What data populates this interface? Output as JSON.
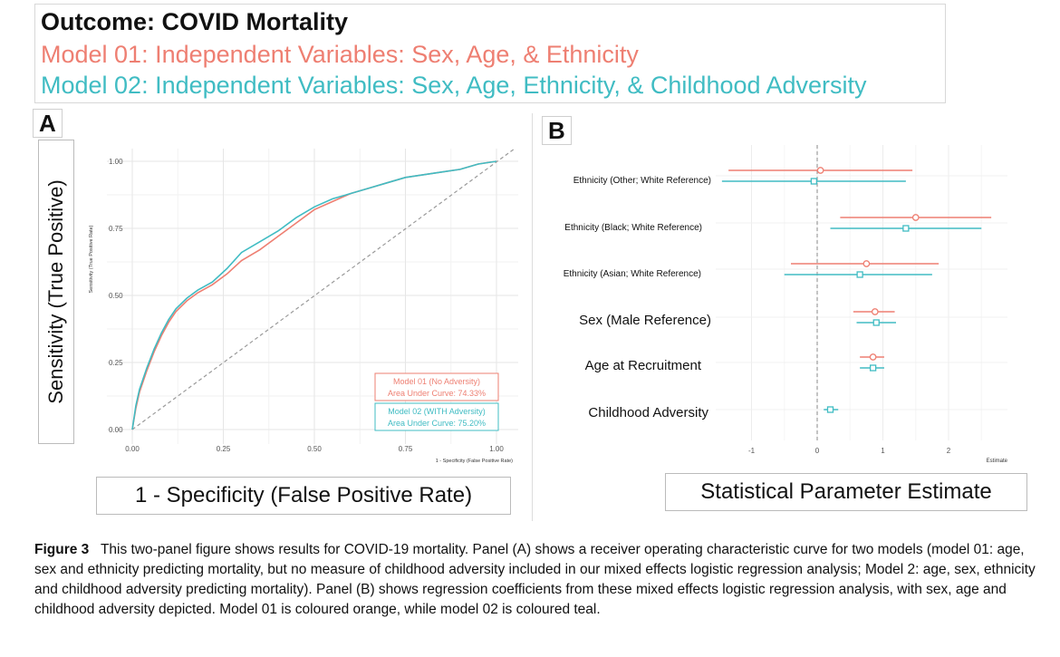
{
  "header": {
    "title": "Outcome: COVID Mortality",
    "model1": "Model 01: Independent Variables: Sex, Age, & Ethnicity",
    "model2": "Model 02: Independent Variables: Sex, Age, Ethnicity, & Childhood Adversity"
  },
  "colors": {
    "model1": "#ee7f72",
    "model2": "#40bcc3",
    "diagonal": "#9a9a9a"
  },
  "panelA": {
    "letter": "A",
    "big_ylabel": "Sensitivity (True Positive)",
    "big_xlabel": "1 - Specificity (False Positive Rate)"
  },
  "panelB": {
    "letter": "B",
    "big_xlabel": "Statistical Parameter Estimate"
  },
  "caption": {
    "label": "Figure 3",
    "text": "This two-panel figure shows results for COVID-19 mortality. Panel (A) shows a receiver operating characteristic curve for two models (model 01: age, sex and ethnicity predicting mortality, but no measure of childhood adversity included in our mixed effects logistic regression analysis; Model 2: age, sex, ethnicity and childhood adversity predicting mortality). Panel (B) shows regression coefficients from these mixed effects logistic regression analysis, with sex, age and childhood adversity depicted. Model 01 is coloured orange, while model 02 is coloured teal."
  },
  "chart_data": [
    {
      "type": "line",
      "title": "",
      "xlabel": "1 - Specificity (False Positive Rate)",
      "ylabel": "Sensitivity (True Positive Rate)",
      "xlim": [
        0,
        1
      ],
      "ylim": [
        0,
        1
      ],
      "xticks": [
        "0.00",
        "0.25",
        "0.50",
        "0.75",
        "1.00"
      ],
      "yticks": [
        "0.00",
        "0.25",
        "0.50",
        "0.75",
        "1.00"
      ],
      "grid": true,
      "legend_position": "bottom-right",
      "legend": [
        {
          "line1": "Model 01 (No Adversity)",
          "line2": "Area Under Curve: 74.33%"
        },
        {
          "line1": "Model 02 (WITH Adversity)",
          "line2": "Area Under Curve: 75.20%"
        }
      ],
      "series": [
        {
          "name": "Model 01 (No Adversity)",
          "x": [
            0,
            0.01,
            0.02,
            0.04,
            0.06,
            0.08,
            0.1,
            0.12,
            0.15,
            0.18,
            0.22,
            0.26,
            0.3,
            0.35,
            0.4,
            0.45,
            0.5,
            0.55,
            0.6,
            0.65,
            0.7,
            0.75,
            0.8,
            0.85,
            0.9,
            0.95,
            1.0
          ],
          "y": [
            0,
            0.08,
            0.14,
            0.22,
            0.29,
            0.35,
            0.4,
            0.44,
            0.48,
            0.51,
            0.54,
            0.58,
            0.63,
            0.67,
            0.72,
            0.77,
            0.82,
            0.85,
            0.88,
            0.9,
            0.92,
            0.94,
            0.95,
            0.96,
            0.97,
            0.99,
            1.0
          ]
        },
        {
          "name": "Model 02 (WITH Adversity)",
          "x": [
            0,
            0.01,
            0.02,
            0.04,
            0.06,
            0.08,
            0.1,
            0.12,
            0.15,
            0.18,
            0.22,
            0.26,
            0.3,
            0.35,
            0.4,
            0.45,
            0.5,
            0.55,
            0.6,
            0.65,
            0.7,
            0.75,
            0.8,
            0.85,
            0.9,
            0.95,
            1.0
          ],
          "y": [
            0,
            0.09,
            0.15,
            0.23,
            0.3,
            0.36,
            0.41,
            0.45,
            0.49,
            0.52,
            0.55,
            0.6,
            0.66,
            0.7,
            0.74,
            0.79,
            0.83,
            0.86,
            0.88,
            0.9,
            0.92,
            0.94,
            0.95,
            0.96,
            0.97,
            0.99,
            1.0
          ]
        }
      ]
    },
    {
      "type": "scatter",
      "title": "",
      "xlabel": "Estimate",
      "ylabel": "",
      "xlim": [
        -1.5,
        2.8
      ],
      "xticks": [
        -1,
        0,
        1,
        2
      ],
      "reference_line_x": 0,
      "grid": true,
      "categories": [
        "Ethnicity (Other; White Reference)",
        "Ethnicity (Black; White Reference)",
        "Ethnicity (Asian; White Reference)",
        "Sex (Male Reference)",
        "Age at Recruitment",
        "Childhood Adversity"
      ],
      "series": [
        {
          "name": "Model 01",
          "estimate": [
            0.05,
            1.5,
            0.75,
            0.88,
            0.85,
            null
          ],
          "lower": [
            -1.35,
            0.35,
            -0.4,
            0.55,
            0.65,
            null
          ],
          "upper": [
            1.45,
            2.65,
            1.85,
            1.18,
            1.02,
            null
          ]
        },
        {
          "name": "Model 02",
          "estimate": [
            -0.05,
            1.35,
            0.65,
            0.9,
            0.85,
            0.2
          ],
          "lower": [
            -1.45,
            0.2,
            -0.5,
            0.6,
            0.65,
            0.1
          ],
          "upper": [
            1.35,
            2.5,
            1.75,
            1.2,
            1.02,
            0.32
          ]
        }
      ]
    }
  ]
}
